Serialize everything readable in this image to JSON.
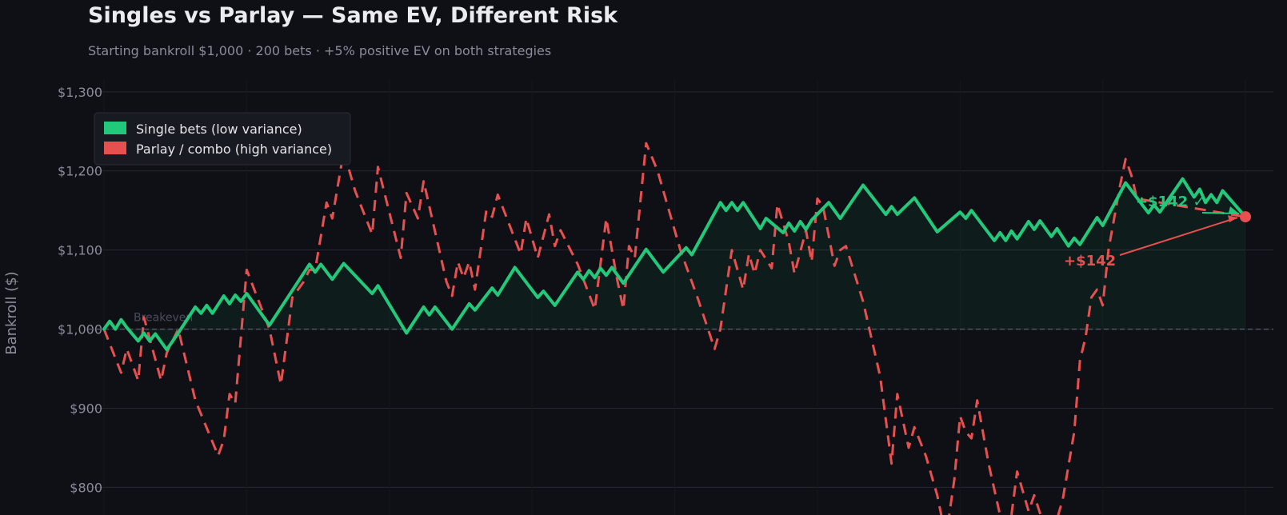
{
  "chart_data": {
    "type": "line",
    "title": "Singles vs Parlay — Same EV, Different Risk",
    "subtitle": "Starting bankroll $1,000  ·  200 bets  ·  +5% positive EV on both strategies",
    "xlabel": "",
    "ylabel": "Bankroll ($)",
    "xlim": [
      0,
      200
    ],
    "ylim": [
      765,
      1315
    ],
    "yticks": [
      800,
      900,
      1000,
      1100,
      1200,
      1300
    ],
    "ytick_labels": [
      "$800",
      "$900",
      "$1,000",
      "$1,100",
      "$1,200",
      "$1,300"
    ],
    "grid": true,
    "legend_position": "top-left",
    "baseline": {
      "value": 1000,
      "label": "Breakeven"
    },
    "colors": {
      "singles": "#22c97a",
      "parlay": "#e85050",
      "background": "#0f1015"
    },
    "series": [
      {
        "name": "Single bets (low variance)",
        "style": "solid",
        "points": [
          [
            0,
            1000
          ],
          [
            1,
            1010
          ],
          [
            2,
            1000
          ],
          [
            3,
            1012
          ],
          [
            4,
            1002
          ],
          [
            6,
            985
          ],
          [
            7,
            995
          ],
          [
            8,
            985
          ],
          [
            9,
            994
          ],
          [
            11,
            974
          ],
          [
            13,
            995
          ],
          [
            16,
            1028
          ],
          [
            17,
            1020
          ],
          [
            18,
            1030
          ],
          [
            19,
            1020
          ],
          [
            21,
            1042
          ],
          [
            22,
            1032
          ],
          [
            23,
            1043
          ],
          [
            24,
            1035
          ],
          [
            25,
            1045
          ],
          [
            29,
            1005
          ],
          [
            36,
            1082
          ],
          [
            37,
            1072
          ],
          [
            38,
            1082
          ],
          [
            40,
            1063
          ],
          [
            42,
            1083
          ],
          [
            47,
            1045
          ],
          [
            48,
            1055
          ],
          [
            53,
            995
          ],
          [
            56,
            1028
          ],
          [
            57,
            1018
          ],
          [
            58,
            1028
          ],
          [
            61,
            1000
          ],
          [
            64,
            1032
          ],
          [
            65,
            1024
          ],
          [
            68,
            1052
          ],
          [
            69,
            1043
          ],
          [
            72,
            1078
          ],
          [
            76,
            1040
          ],
          [
            77,
            1048
          ],
          [
            79,
            1030
          ],
          [
            83,
            1072
          ],
          [
            84,
            1063
          ],
          [
            85,
            1074
          ],
          [
            86,
            1065
          ],
          [
            87,
            1077
          ],
          [
            88,
            1068
          ],
          [
            89,
            1078
          ],
          [
            91,
            1058
          ],
          [
            95,
            1101
          ],
          [
            98,
            1072
          ],
          [
            102,
            1103
          ],
          [
            103,
            1094
          ],
          [
            108,
            1160
          ],
          [
            109,
            1150
          ],
          [
            110,
            1160
          ],
          [
            111,
            1150
          ],
          [
            112,
            1160
          ],
          [
            115,
            1127
          ],
          [
            116,
            1140
          ],
          [
            119,
            1122
          ],
          [
            120,
            1134
          ],
          [
            121,
            1124
          ],
          [
            122,
            1136
          ],
          [
            123,
            1126
          ],
          [
            124,
            1138
          ],
          [
            127,
            1160
          ],
          [
            129,
            1140
          ],
          [
            133,
            1182
          ],
          [
            137,
            1145
          ],
          [
            138,
            1155
          ],
          [
            139,
            1145
          ],
          [
            142,
            1166
          ],
          [
            146,
            1123
          ],
          [
            150,
            1148
          ],
          [
            151,
            1140
          ],
          [
            152,
            1150
          ],
          [
            156,
            1112
          ],
          [
            157,
            1122
          ],
          [
            158,
            1112
          ],
          [
            159,
            1124
          ],
          [
            160,
            1114
          ],
          [
            162,
            1136
          ],
          [
            163,
            1126
          ],
          [
            164,
            1137
          ],
          [
            166,
            1117
          ],
          [
            167,
            1127
          ],
          [
            169,
            1105
          ],
          [
            170,
            1115
          ],
          [
            171,
            1107
          ],
          [
            174,
            1141
          ],
          [
            175,
            1131
          ],
          [
            179,
            1185
          ],
          [
            183,
            1147
          ],
          [
            184,
            1157
          ],
          [
            185,
            1148
          ],
          [
            189,
            1190
          ],
          [
            191,
            1167
          ],
          [
            192,
            1177
          ],
          [
            193,
            1160
          ],
          [
            194,
            1170
          ],
          [
            195,
            1160
          ],
          [
            196,
            1175
          ],
          [
            200,
            1142
          ]
        ]
      },
      {
        "name": "Parlay / combo (high variance)",
        "style": "dashed",
        "points": [
          [
            0,
            1000
          ],
          [
            3,
            945
          ],
          [
            4,
            975
          ],
          [
            6,
            935
          ],
          [
            7,
            1015
          ],
          [
            10,
            935
          ],
          [
            11,
            970
          ],
          [
            13,
            1000
          ],
          [
            16,
            910
          ],
          [
            20,
            840
          ],
          [
            21,
            860
          ],
          [
            22,
            918
          ],
          [
            23,
            906
          ],
          [
            25,
            1075
          ],
          [
            29,
            1000
          ],
          [
            31,
            930
          ],
          [
            33,
            1040
          ],
          [
            35,
            1060
          ],
          [
            36,
            1075
          ],
          [
            37,
            1075
          ],
          [
            39,
            1160
          ],
          [
            40,
            1140
          ],
          [
            42,
            1225
          ],
          [
            44,
            1175
          ],
          [
            47,
            1120
          ],
          [
            48,
            1205
          ],
          [
            52,
            1090
          ],
          [
            53,
            1172
          ],
          [
            55,
            1140
          ],
          [
            56,
            1187
          ],
          [
            60,
            1060
          ],
          [
            61,
            1042
          ],
          [
            62,
            1085
          ],
          [
            63,
            1065
          ],
          [
            64,
            1085
          ],
          [
            65,
            1050
          ],
          [
            67,
            1150
          ],
          [
            68,
            1142
          ],
          [
            69,
            1170
          ],
          [
            73,
            1095
          ],
          [
            74,
            1140
          ],
          [
            76,
            1090
          ],
          [
            78,
            1145
          ],
          [
            79,
            1105
          ],
          [
            80,
            1125
          ],
          [
            83,
            1082
          ],
          [
            86,
            1025
          ],
          [
            88,
            1140
          ],
          [
            90,
            1060
          ],
          [
            91,
            1025
          ],
          [
            92,
            1105
          ],
          [
            93,
            1090
          ],
          [
            95,
            1235
          ],
          [
            97,
            1200
          ],
          [
            101,
            1100
          ],
          [
            104,
            1040
          ],
          [
            107,
            975
          ],
          [
            108,
            1000
          ],
          [
            110,
            1100
          ],
          [
            112,
            1050
          ],
          [
            113,
            1095
          ],
          [
            114,
            1070
          ],
          [
            115,
            1100
          ],
          [
            117,
            1077
          ],
          [
            118,
            1158
          ],
          [
            120,
            1110
          ],
          [
            121,
            1070
          ],
          [
            123,
            1125
          ],
          [
            124,
            1085
          ],
          [
            125,
            1165
          ],
          [
            126,
            1155
          ],
          [
            128,
            1080
          ],
          [
            129,
            1100
          ],
          [
            130,
            1105
          ],
          [
            133,
            1035
          ],
          [
            136,
            940
          ],
          [
            138,
            830
          ],
          [
            139,
            918
          ],
          [
            141,
            850
          ],
          [
            142,
            876
          ],
          [
            144,
            840
          ],
          [
            146,
            790
          ],
          [
            147,
            755
          ],
          [
            148,
            760
          ],
          [
            149,
            810
          ],
          [
            150,
            890
          ],
          [
            151,
            870
          ],
          [
            152,
            862
          ],
          [
            153,
            910
          ],
          [
            155,
            830
          ],
          [
            157,
            765
          ],
          [
            158,
            740
          ],
          [
            159,
            765
          ],
          [
            160,
            820
          ],
          [
            162,
            770
          ],
          [
            163,
            790
          ],
          [
            165,
            745
          ],
          [
            166,
            740
          ],
          [
            167,
            760
          ],
          [
            168,
            785
          ],
          [
            170,
            870
          ],
          [
            171,
            960
          ],
          [
            172,
            990
          ],
          [
            173,
            1040
          ],
          [
            174,
            1050
          ],
          [
            175,
            1030
          ],
          [
            176,
            1100
          ],
          [
            177,
            1140
          ],
          [
            178,
            1180
          ],
          [
            179,
            1215
          ],
          [
            180,
            1195
          ],
          [
            181,
            1165
          ],
          [
            200,
            1142
          ]
        ]
      }
    ],
    "annotations": [
      {
        "series": 0,
        "text": "+$142 ✓",
        "x": 200,
        "y": 1142
      },
      {
        "series": 1,
        "text": "+$142",
        "x": 200,
        "y": 1142
      }
    ]
  }
}
